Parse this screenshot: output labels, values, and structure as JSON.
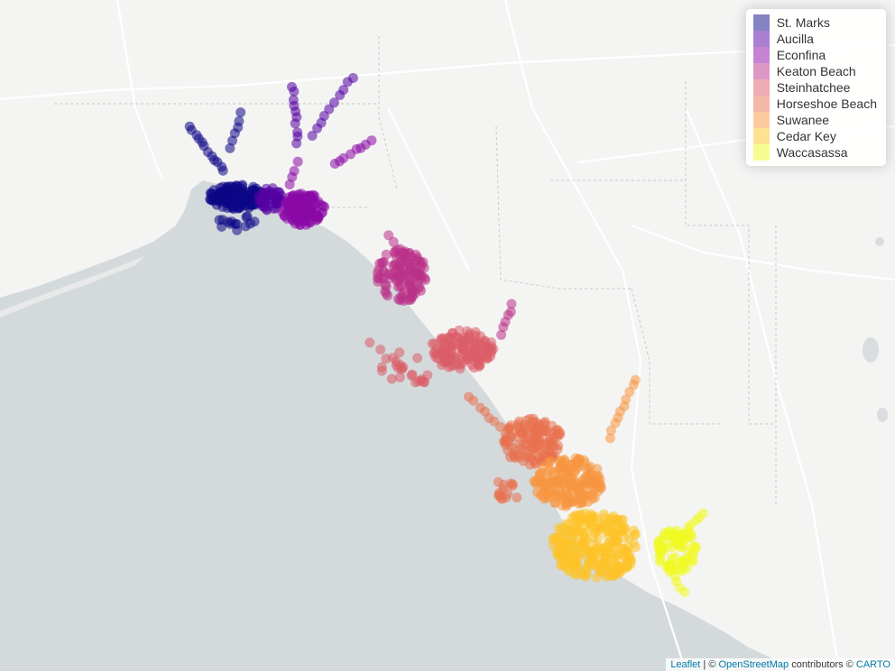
{
  "legend": {
    "items": [
      {
        "label": "St. Marks",
        "color": "#0d0887"
      },
      {
        "label": "Aucilla",
        "color": "#5402a3"
      },
      {
        "label": "Econfina",
        "color": "#8b0aa5"
      },
      {
        "label": "Keaton Beach",
        "color": "#b93289"
      },
      {
        "label": "Steinhatchee",
        "color": "#db5c68"
      },
      {
        "label": "Horseshoe Beach",
        "color": "#e8714f"
      },
      {
        "label": "Suwanee",
        "color": "#f89540"
      },
      {
        "label": "Cedar Key",
        "color": "#fdc328"
      },
      {
        "label": "Waccasassa",
        "color": "#f0f921"
      }
    ]
  },
  "attribution": {
    "leaflet": "Leaflet",
    "sep": " | © ",
    "osm": "OpenStreetMap",
    "mid": " contributors © ",
    "carto": "CARTO"
  }
}
